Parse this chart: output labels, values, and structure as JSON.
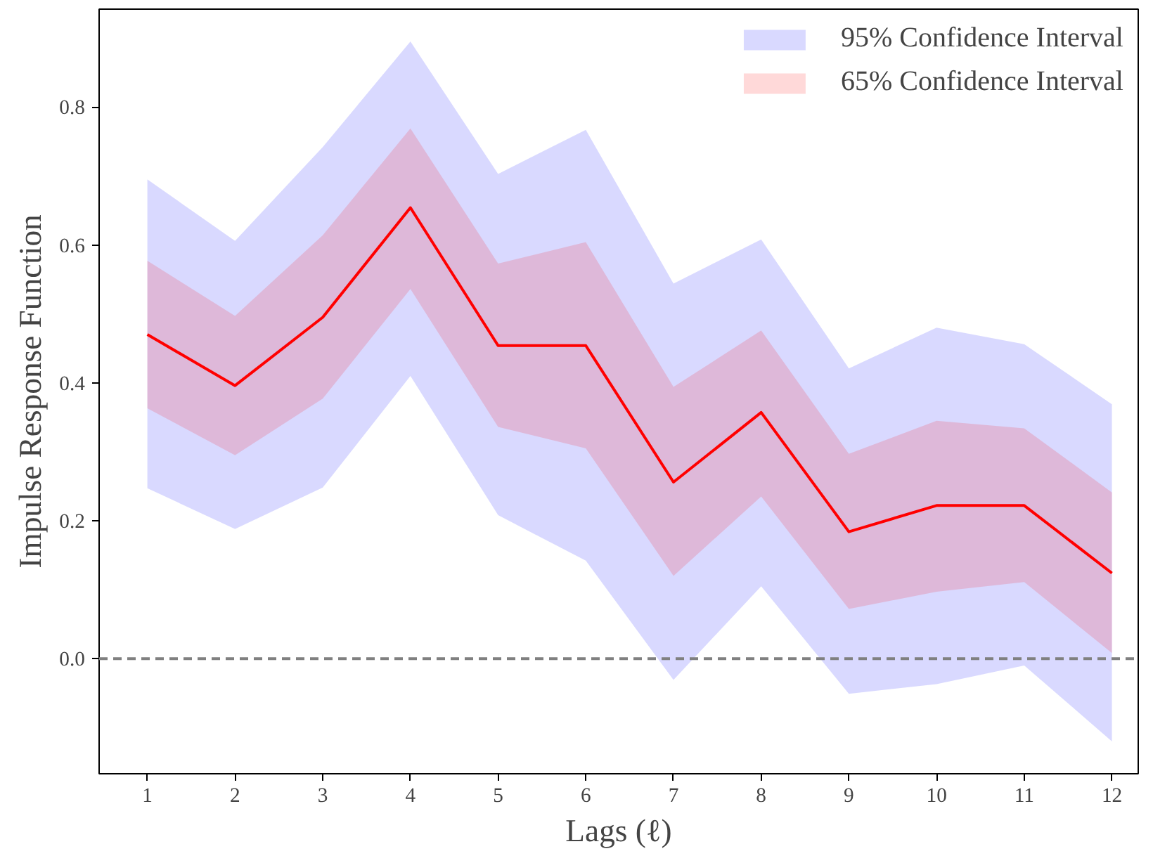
{
  "chart_data": {
    "type": "line",
    "xlabel": "Lags (ℓ)",
    "ylabel": "Impulse Response Function",
    "x": [
      1,
      2,
      3,
      4,
      5,
      6,
      7,
      8,
      9,
      10,
      11,
      12
    ],
    "series": [
      {
        "name": "95% Confidence Interval",
        "color": "#0000ff",
        "values": [
          null,
          null,
          null,
          null,
          null,
          null,
          null,
          null,
          null,
          null,
          null,
          null
        ],
        "lower": [
          0.247,
          0.188,
          0.248,
          0.41,
          0.208,
          0.142,
          -0.031,
          0.105,
          -0.051,
          -0.037,
          -0.01,
          -0.12
        ],
        "upper": [
          0.695,
          0.606,
          0.742,
          0.895,
          0.703,
          0.767,
          0.544,
          0.608,
          0.421,
          0.48,
          0.456,
          0.369
        ]
      },
      {
        "name": "65% Confidence Interval",
        "color": "#ff0000",
        "values": [
          0.47,
          0.396,
          0.495,
          0.654,
          0.454,
          0.454,
          0.256,
          0.357,
          0.184,
          0.222,
          0.222,
          0.124
        ],
        "lower": [
          0.363,
          0.295,
          0.377,
          0.536,
          0.336,
          0.305,
          0.12,
          0.235,
          0.072,
          0.097,
          0.111,
          0.008
        ],
        "upper": [
          0.577,
          0.497,
          0.614,
          0.769,
          0.573,
          0.604,
          0.394,
          0.476,
          0.297,
          0.345,
          0.334,
          0.241
        ]
      }
    ],
    "xlim": [
      0.45,
      12.3
    ],
    "xticks": [
      1,
      2,
      3,
      4,
      5,
      6,
      7,
      8,
      9,
      10,
      11,
      12
    ],
    "ylim": [
      -0.167,
      0.942
    ],
    "yticks": [
      {
        "value": 0,
        "label": "0.0"
      },
      0.2,
      0.4,
      0.6,
      0.8
    ],
    "ref_lines": [
      {
        "axis": "y",
        "value": 0,
        "color": "#808080",
        "line_style": "dashed"
      }
    ],
    "legend": "top right",
    "grid": false,
    "marker": "none",
    "line_style": "solid"
  }
}
